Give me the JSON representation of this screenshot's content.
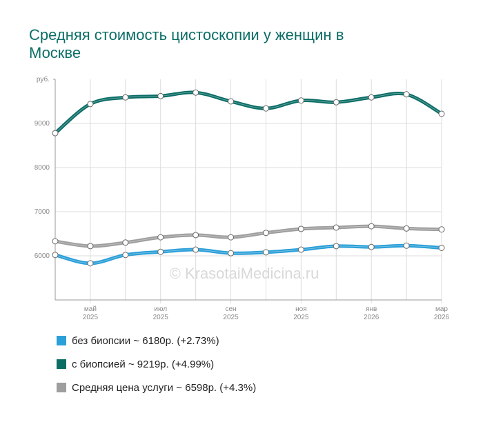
{
  "chart_data": {
    "type": "line",
    "title": "Средняя стоимость цистоскопии у женщин в Москве",
    "watermark": "© KrasotaiMedicina.ru",
    "categories": [
      null,
      "май 2025",
      null,
      "июл 2025",
      null,
      "сен 2025",
      null,
      "ноя 2025",
      null,
      "янв 2026",
      null,
      "мар 2026"
    ],
    "ylim": [
      5000,
      10000
    ],
    "yticks": [
      6000,
      7000,
      8000,
      9000,
      {
        "value": 10000,
        "label": "руб."
      }
    ],
    "grid": true,
    "series": [
      {
        "name": "без биопсии ~ 6180р. (+2.73%)",
        "color": "#2a9fd8",
        "values": [
          6020,
          5830,
          6020,
          6090,
          6140,
          6060,
          6080,
          6140,
          6220,
          6200,
          6230,
          6180
        ]
      },
      {
        "name": "с биопсией ~ 9219р. (+4.99%)",
        "color": "#0b6e66",
        "values": [
          8780,
          9440,
          9590,
          9620,
          9700,
          9500,
          9340,
          9520,
          9480,
          9590,
          9660,
          9219
        ]
      },
      {
        "name": "Средняя цена услуги ~ 6598р. (+4.3%)",
        "color": "#9e9e9e",
        "values": [
          6330,
          6220,
          6300,
          6420,
          6470,
          6420,
          6520,
          6610,
          6640,
          6670,
          6620,
          6598
        ]
      }
    ]
  }
}
